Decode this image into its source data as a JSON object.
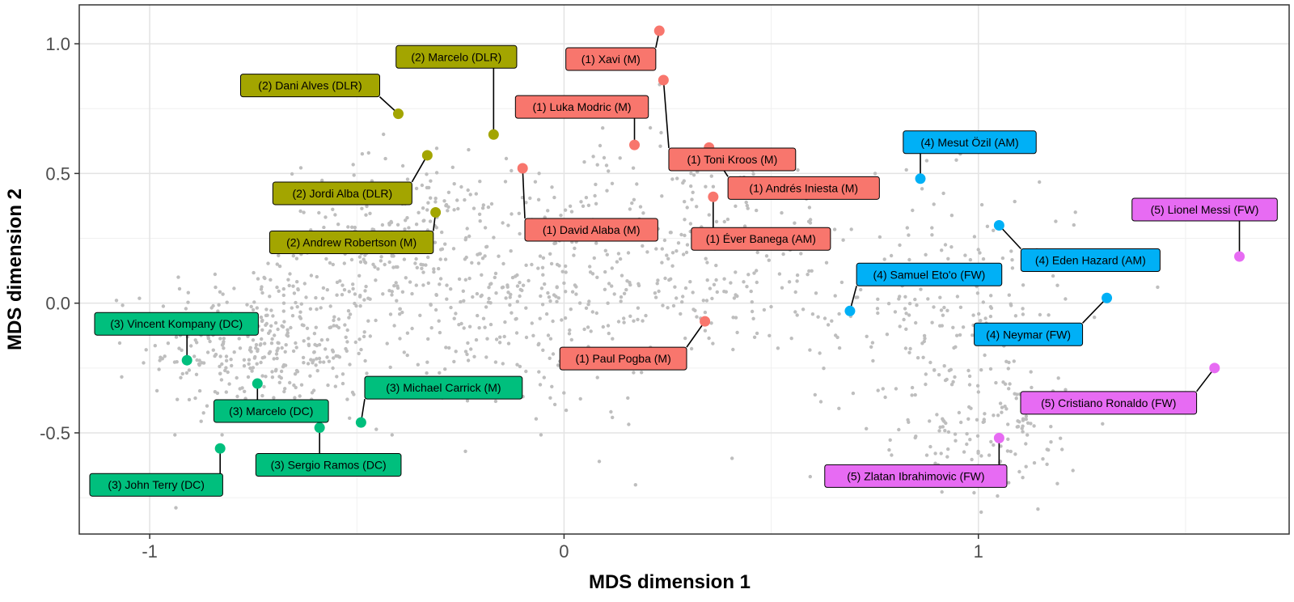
{
  "chart_data": {
    "type": "scatter",
    "xlabel": "MDS dimension 1",
    "ylabel": "MDS dimension 2",
    "xlim": [
      -1.17,
      1.75
    ],
    "ylim": [
      -0.89,
      1.15
    ],
    "xticks": [
      -1,
      0,
      1
    ],
    "xtick_labels": [
      "-1",
      "0",
      "1"
    ],
    "yticks": [
      -0.5,
      0.0,
      0.5,
      1.0
    ],
    "ytick_labels": [
      "-0.5",
      "0.0",
      "0.5",
      "1.0"
    ],
    "grid": true,
    "legend": "none",
    "colors": {
      "1": "#F8766D",
      "2": "#A3A500",
      "3": "#00BF7D",
      "4": "#00B0F6",
      "5": "#E76BF3",
      "background_points": "#BEBEBE"
    },
    "background_points": {
      "count": 1500,
      "description_hidden": true
    },
    "labelled_points": [
      {
        "label": "(1) Xavi (M)",
        "cluster": 1,
        "x": 0.23,
        "y": 1.05
      },
      {
        "label": "(1) Toni Kroos (M)",
        "cluster": 1,
        "x": 0.24,
        "y": 0.86
      },
      {
        "label": "(1) Luka Modric (M)",
        "cluster": 1,
        "x": 0.17,
        "y": 0.61
      },
      {
        "label": "(1) Andrés Iniesta (M)",
        "cluster": 1,
        "x": 0.35,
        "y": 0.6
      },
      {
        "label": "(1) David Alaba (M)",
        "cluster": 1,
        "x": -0.1,
        "y": 0.52
      },
      {
        "label": "(1) Éver Banega (AM)",
        "cluster": 1,
        "x": 0.36,
        "y": 0.41
      },
      {
        "label": "(1) Paul Pogba (M)",
        "cluster": 1,
        "x": 0.34,
        "y": -0.07
      },
      {
        "label": "(2) Marcelo (DLR)",
        "cluster": 2,
        "x": -0.17,
        "y": 0.65
      },
      {
        "label": "(2) Dani Alves (DLR)",
        "cluster": 2,
        "x": -0.4,
        "y": 0.73
      },
      {
        "label": "(2) Jordi Alba (DLR)",
        "cluster": 2,
        "x": -0.33,
        "y": 0.57
      },
      {
        "label": "(2) Andrew Robertson (M)",
        "cluster": 2,
        "x": -0.31,
        "y": 0.35
      },
      {
        "label": "(3) Vincent Kompany (DC)",
        "cluster": 3,
        "x": -0.91,
        "y": -0.22
      },
      {
        "label": "(3) Marcelo (DC)",
        "cluster": 3,
        "x": -0.74,
        "y": -0.31
      },
      {
        "label": "(3) Michael Carrick (M)",
        "cluster": 3,
        "x": -0.49,
        "y": -0.46
      },
      {
        "label": "(3) Sergio Ramos (DC)",
        "cluster": 3,
        "x": -0.59,
        "y": -0.48
      },
      {
        "label": "(3) John Terry (DC)",
        "cluster": 3,
        "x": -0.83,
        "y": -0.56
      },
      {
        "label": "(4) Mesut Özil (AM)",
        "cluster": 4,
        "x": 0.86,
        "y": 0.48
      },
      {
        "label": "(4) Eden Hazard (AM)",
        "cluster": 4,
        "x": 1.05,
        "y": 0.3
      },
      {
        "label": "(4) Samuel Eto'o (FW)",
        "cluster": 4,
        "x": 0.69,
        "y": -0.03
      },
      {
        "label": "(4) Neymar (FW)",
        "cluster": 4,
        "x": 1.31,
        "y": 0.02
      },
      {
        "label": "(5) Lionel Messi (FW)",
        "cluster": 5,
        "x": 1.63,
        "y": 0.18
      },
      {
        "label": "(5) Cristiano Ronaldo (FW)",
        "cluster": 5,
        "x": 1.57,
        "y": -0.25
      },
      {
        "label": "(5) Zlatan Ibrahimovic (FW)",
        "cluster": 5,
        "x": 1.05,
        "y": -0.52
      }
    ]
  }
}
